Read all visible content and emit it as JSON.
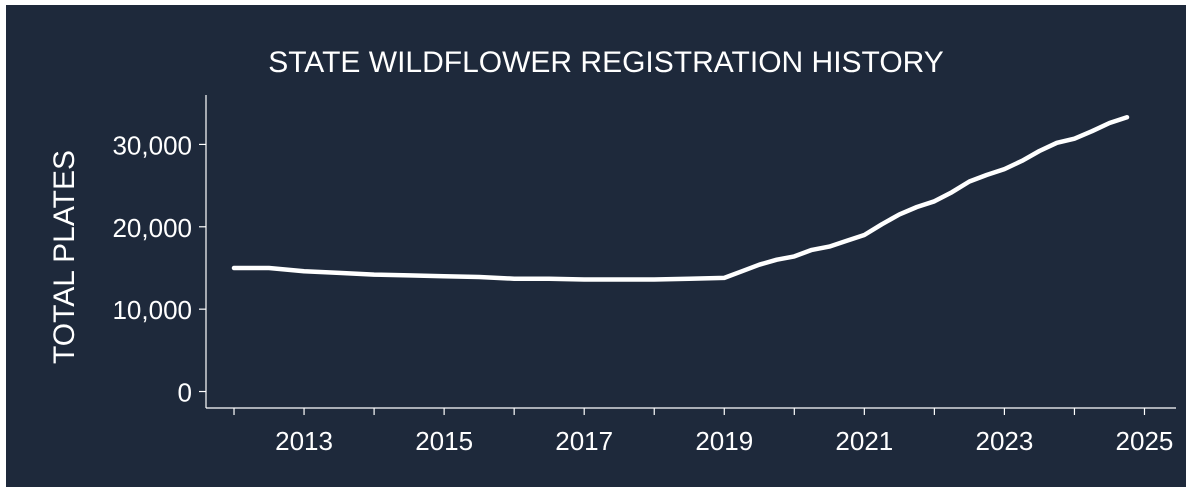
{
  "chart_data": {
    "type": "line",
    "title": "STATE WILDFLOWER REGISTRATION HISTORY",
    "xlabel": "",
    "ylabel": "TOTAL PLATES",
    "xlim": [
      2011.6,
      2025.45
    ],
    "ylim": [
      -2000,
      36000
    ],
    "x_ticks": [
      2012,
      2013,
      2014,
      2015,
      2016,
      2017,
      2018,
      2019,
      2020,
      2021,
      2022,
      2023,
      2024,
      2025
    ],
    "x_tick_labels": [
      "2013",
      "2015",
      "2017",
      "2019",
      "2021",
      "2023",
      "2025"
    ],
    "x_tick_label_years": [
      2013,
      2015,
      2017,
      2019,
      2021,
      2023,
      2025
    ],
    "y_ticks": [
      0,
      10000,
      20000,
      30000
    ],
    "y_tick_labels": [
      "0",
      "10,000",
      "20,000",
      "30,000"
    ],
    "grid": false,
    "legend": "none",
    "line_color": "#ffffff",
    "background_color": "#1e293b",
    "series": [
      {
        "x": [
          2012.0,
          2012.5,
          2013.0,
          2013.5,
          2014.0,
          2014.5,
          2015.0,
          2015.5,
          2016.0,
          2016.5,
          2017.0,
          2017.5,
          2018.0,
          2018.5,
          2019.0,
          2019.25,
          2019.5,
          2019.75,
          2020.0,
          2020.25,
          2020.5,
          2020.75,
          2021.0,
          2021.25,
          2021.5,
          2021.75,
          2022.0,
          2022.25,
          2022.5,
          2022.75,
          2023.0,
          2023.25,
          2023.5,
          2023.75,
          2024.0,
          2024.25,
          2024.5,
          2024.75
        ],
        "y": [
          15000,
          15000,
          14600,
          14400,
          14200,
          14100,
          14000,
          13900,
          13700,
          13700,
          13600,
          13600,
          13600,
          13700,
          13800,
          14600,
          15400,
          16000,
          16400,
          17200,
          17600,
          18300,
          19000,
          20300,
          21500,
          22400,
          23100,
          24200,
          25500,
          26300,
          27000,
          28000,
          29200,
          30200,
          30700,
          31600,
          32600,
          33300
        ]
      }
    ]
  }
}
